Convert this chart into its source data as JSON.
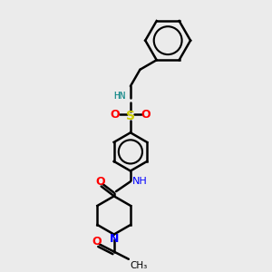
{
  "bg_color": "#ebebeb",
  "bond_color": "#000000",
  "N_color": "#0000ff",
  "O_color": "#ff0000",
  "S_color": "#cccc00",
  "line_width": 1.8,
  "fig_size": [
    3.0,
    3.0
  ],
  "dpi": 100,
  "xlim": [
    0,
    10
  ],
  "ylim": [
    0,
    10
  ]
}
